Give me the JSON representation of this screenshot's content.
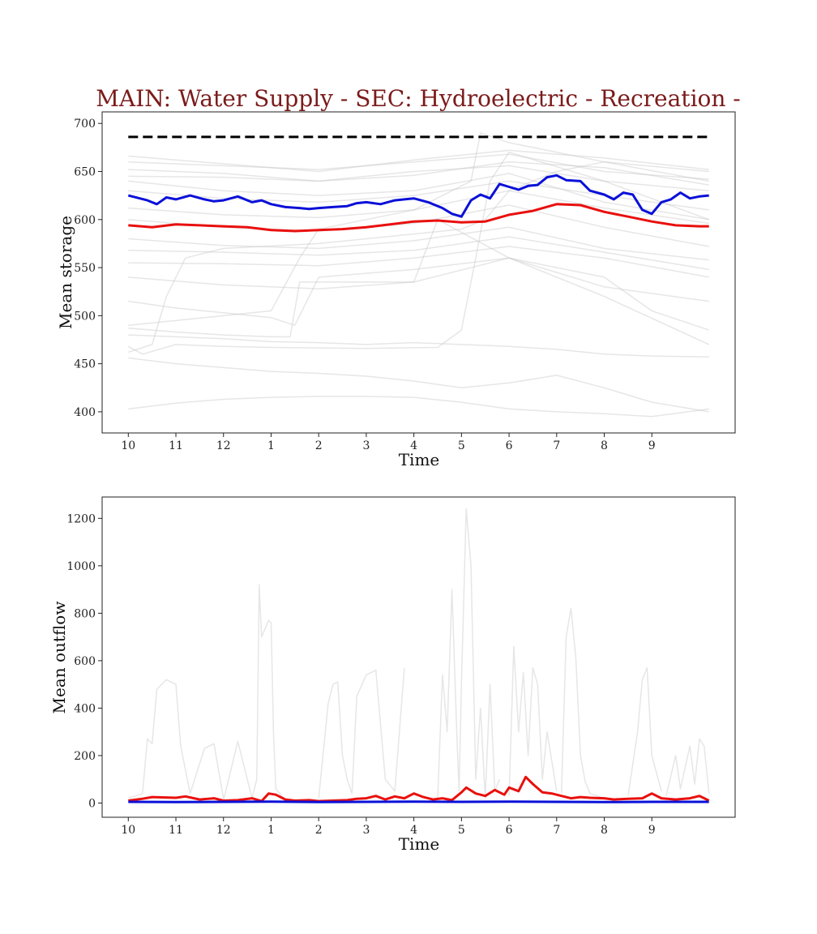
{
  "figure": {
    "title": "MAIN: Water Supply - SEC: Hydroelectric - Recreation -",
    "title_color": "#7b1b1b"
  },
  "chart_data": [
    {
      "type": "line",
      "xlabel": "Time",
      "ylabel": "Mean storage",
      "x_tick_labels": [
        "10",
        "11",
        "12",
        "1",
        "2",
        "3",
        "4",
        "5",
        "6",
        "7",
        "8",
        "9"
      ],
      "x_tick_positions": [
        0,
        1,
        2,
        3,
        4,
        5,
        6,
        7,
        8,
        9,
        10,
        11
      ],
      "xlim": [
        -0.55,
        12.75
      ],
      "y_ticks": [
        400,
        450,
        500,
        550,
        600,
        650,
        700
      ],
      "ylim": [
        378,
        712
      ],
      "colors": {
        "mean": "#0a10d8",
        "reference": "#e8100e",
        "threshold": "#000000",
        "background": "#c8c8c8"
      },
      "threshold": {
        "value": 686,
        "style": "dashed"
      },
      "series": [
        {
          "role": "mean",
          "x": [
            0,
            0.4,
            0.6,
            0.8,
            1.0,
            1.3,
            1.6,
            1.8,
            2.0,
            2.3,
            2.6,
            2.8,
            3.0,
            3.3,
            3.6,
            3.8,
            4.0,
            4.3,
            4.6,
            4.8,
            5.0,
            5.3,
            5.6,
            5.8,
            6.0,
            6.3,
            6.6,
            6.8,
            7.0,
            7.2,
            7.4,
            7.6,
            7.8,
            8.0,
            8.2,
            8.4,
            8.6,
            8.8,
            9.0,
            9.2,
            9.5,
            9.7,
            10.0,
            10.2,
            10.4,
            10.6,
            10.8,
            11.0,
            11.2,
            11.4,
            11.6,
            11.8,
            12.0,
            12.2
          ],
          "values": [
            625,
            620,
            616,
            623,
            621,
            625,
            621,
            619,
            620,
            624,
            618,
            620,
            616,
            613,
            612,
            611,
            612,
            613,
            614,
            617,
            618,
            616,
            620,
            621,
            622,
            618,
            612,
            606,
            603,
            620,
            626,
            622,
            637,
            634,
            631,
            635,
            636,
            644,
            646,
            641,
            640,
            630,
            626,
            621,
            628,
            626,
            610,
            606,
            618,
            621,
            628,
            622,
            624,
            625
          ]
        },
        {
          "role": "reference",
          "x": [
            0,
            0.5,
            1.0,
            1.5,
            2.0,
            2.5,
            3.0,
            3.5,
            4.0,
            4.5,
            5.0,
            5.5,
            6.0,
            6.5,
            7.0,
            7.5,
            8.0,
            8.5,
            9.0,
            9.5,
            10.0,
            10.5,
            11.0,
            11.5,
            12.0,
            12.2
          ],
          "values": [
            594,
            592,
            595,
            594,
            593,
            592,
            589,
            588,
            589,
            590,
            592,
            595,
            598,
            599,
            597,
            598,
            605,
            609,
            616,
            615,
            608,
            603,
            598,
            594,
            593,
            593
          ]
        },
        {
          "role": "background",
          "x": [
            0,
            2,
            4,
            6,
            8,
            10,
            12.2
          ],
          "values": [
            660,
            656,
            652,
            660,
            668,
            650,
            642
          ]
        },
        {
          "role": "background",
          "x": [
            0,
            2,
            4,
            6,
            8,
            10,
            12.2
          ],
          "values": [
            652,
            648,
            640,
            646,
            660,
            654,
            636
          ]
        },
        {
          "role": "background",
          "x": [
            0,
            2,
            4,
            6,
            8,
            10,
            12.2
          ],
          "values": [
            666,
            658,
            650,
            662,
            672,
            664,
            652
          ]
        },
        {
          "role": "background",
          "x": [
            0,
            2,
            4,
            6,
            8,
            10,
            12.2
          ],
          "values": [
            645,
            644,
            640,
            650,
            656,
            640,
            630
          ]
        },
        {
          "role": "background",
          "x": [
            0,
            2,
            4,
            6,
            8,
            10,
            12.2
          ],
          "values": [
            640,
            630,
            625,
            630,
            648,
            618,
            600
          ]
        },
        {
          "role": "background",
          "x": [
            0,
            2,
            4,
            6,
            8,
            10,
            12.2
          ],
          "values": [
            630,
            622,
            618,
            625,
            640,
            625,
            610
          ]
        },
        {
          "role": "background",
          "x": [
            0,
            2,
            4,
            6,
            8,
            10,
            12.2
          ],
          "values": [
            612,
            605,
            602,
            610,
            630,
            612,
            596
          ]
        },
        {
          "role": "background",
          "x": [
            0,
            2,
            4,
            6,
            8,
            10,
            12.2
          ],
          "values": [
            600,
            592,
            588,
            596,
            615,
            592,
            572
          ]
        },
        {
          "role": "background",
          "x": [
            0,
            2,
            4,
            6,
            8,
            10,
            12.2
          ],
          "values": [
            580,
            573,
            570,
            578,
            592,
            570,
            558
          ]
        },
        {
          "role": "background",
          "x": [
            0,
            2,
            4,
            6,
            8,
            10,
            12.2
          ],
          "values": [
            568,
            566,
            563,
            568,
            582,
            566,
            548
          ]
        },
        {
          "role": "background",
          "x": [
            0,
            2,
            4,
            6,
            8,
            10,
            12.2
          ],
          "values": [
            555,
            554,
            552,
            560,
            572,
            560,
            540
          ]
        },
        {
          "role": "background",
          "x": [
            0,
            2,
            4,
            6,
            8,
            10,
            12.2
          ],
          "values": [
            540,
            532,
            528,
            535,
            560,
            530,
            515
          ]
        },
        {
          "role": "background",
          "x": [
            0,
            1,
            2,
            3,
            3.5,
            4,
            6,
            8,
            10,
            11,
            12.2
          ],
          "values": [
            515,
            508,
            503,
            498,
            490,
            540,
            548,
            560,
            540,
            505,
            485
          ]
        },
        {
          "role": "background",
          "x": [
            0,
            1,
            2,
            3,
            3.4,
            3.6,
            6,
            6.5,
            8,
            10,
            12.2
          ],
          "values": [
            487,
            483,
            480,
            478,
            478,
            535,
            535,
            600,
            560,
            520,
            470
          ]
        },
        {
          "role": "background",
          "x": [
            0,
            1,
            2,
            3,
            4,
            5,
            6,
            7,
            8,
            9,
            10,
            11,
            12.2
          ],
          "values": [
            480,
            478,
            476,
            473,
            472,
            470,
            472,
            470,
            468,
            465,
            460,
            458,
            457
          ]
        },
        {
          "role": "background",
          "x": [
            0,
            1,
            2,
            3,
            4,
            5,
            6,
            7,
            8,
            9,
            10,
            11,
            12.2
          ],
          "values": [
            456,
            450,
            446,
            442,
            440,
            437,
            432,
            425,
            430,
            438,
            425,
            410,
            400
          ]
        },
        {
          "role": "background",
          "x": [
            0,
            1,
            2,
            3,
            4,
            5,
            6,
            7,
            8,
            9,
            10,
            11,
            12.2
          ],
          "values": [
            403,
            409,
            413,
            415,
            416,
            416,
            415,
            410,
            403,
            400,
            398,
            395,
            403
          ]
        },
        {
          "role": "background",
          "x": [
            0,
            0.3,
            1,
            2,
            3,
            5,
            6.5,
            7,
            7.3,
            7.6,
            8,
            10,
            12.2
          ],
          "values": [
            468,
            460,
            470,
            468,
            467,
            466,
            467,
            485,
            560,
            640,
            670,
            640,
            600
          ]
        },
        {
          "role": "background",
          "x": [
            0,
            0.5,
            0.8,
            1.2,
            2,
            4,
            5,
            6,
            7,
            7.5,
            8,
            9,
            10,
            12.2
          ],
          "values": [
            462,
            470,
            520,
            560,
            570,
            575,
            580,
            585,
            590,
            600,
            630,
            650,
            660,
            650
          ]
        },
        {
          "role": "background",
          "x": [
            0,
            2,
            3,
            3.6,
            4,
            5,
            6,
            7.2,
            7.4,
            8,
            10,
            12.2
          ],
          "values": [
            490,
            500,
            505,
            560,
            590,
            600,
            610,
            640,
            690,
            680,
            660,
            640
          ]
        }
      ]
    },
    {
      "type": "line",
      "xlabel": "Time",
      "ylabel": "Mean outflow",
      "x_tick_labels": [
        "10",
        "11",
        "12",
        "1",
        "2",
        "3",
        "4",
        "5",
        "6",
        "7",
        "8",
        "9"
      ],
      "x_tick_positions": [
        0,
        1,
        2,
        3,
        4,
        5,
        6,
        7,
        8,
        9,
        10,
        11
      ],
      "xlim": [
        -0.55,
        12.75
      ],
      "y_ticks": [
        0,
        200,
        400,
        600,
        800,
        1000,
        1200
      ],
      "ylim": [
        -60,
        1290
      ],
      "colors": {
        "mean": "#0a10d8",
        "reference": "#e8100e",
        "background": "#c8c8c8"
      },
      "series": [
        {
          "role": "reference",
          "x": [
            0,
            0.3,
            0.5,
            1.0,
            1.2,
            1.5,
            1.8,
            2.0,
            2.3,
            2.6,
            2.8,
            2.95,
            3.1,
            3.3,
            3.5,
            3.8,
            4.0,
            4.3,
            4.6,
            4.8,
            5.0,
            5.2,
            5.4,
            5.6,
            5.8,
            6.0,
            6.2,
            6.4,
            6.6,
            6.8,
            7.0,
            7.1,
            7.3,
            7.5,
            7.7,
            7.9,
            8.0,
            8.2,
            8.35,
            8.5,
            8.7,
            8.9,
            9.1,
            9.3,
            9.5,
            9.7,
            10.0,
            10.2,
            10.5,
            10.8,
            11.0,
            11.2,
            11.5,
            11.8,
            12.0,
            12.2
          ],
          "values": [
            10,
            18,
            25,
            22,
            28,
            15,
            20,
            10,
            12,
            20,
            8,
            40,
            35,
            15,
            10,
            12,
            8,
            10,
            12,
            18,
            20,
            30,
            15,
            28,
            20,
            40,
            25,
            15,
            20,
            12,
            45,
            65,
            40,
            30,
            55,
            35,
            65,
            50,
            110,
            80,
            45,
            40,
            30,
            20,
            25,
            22,
            20,
            15,
            18,
            20,
            40,
            20,
            15,
            20,
            30,
            10
          ]
        },
        {
          "role": "mean",
          "x": [
            0,
            1,
            2,
            3,
            4,
            5,
            6,
            7,
            8,
            9,
            10,
            11,
            12.2
          ],
          "values": [
            5,
            4,
            5,
            6,
            4,
            5,
            6,
            5,
            6,
            5,
            4,
            5,
            5
          ]
        },
        {
          "role": "background",
          "x": [
            0,
            0.3,
            0.4,
            0.5,
            0.6,
            0.8,
            1.0,
            1.1,
            1.3,
            1.6,
            1.8,
            2.0
          ],
          "values": [
            20,
            40,
            270,
            250,
            480,
            520,
            500,
            240,
            40,
            230,
            250,
            20
          ]
        },
        {
          "role": "background",
          "x": [
            2,
            2.3,
            2.6,
            2.7,
            2.75,
            2.8,
            2.95,
            3.0,
            3.05,
            3.1,
            3.3
          ],
          "values": [
            10,
            260,
            20,
            100,
            920,
            700,
            770,
            760,
            300,
            60,
            10
          ]
        },
        {
          "role": "background",
          "x": [
            4,
            4.2,
            4.3,
            4.4,
            4.5,
            4.6,
            4.7,
            4.8,
            5.0,
            5.2,
            5.4,
            5.6,
            5.8
          ],
          "values": [
            20,
            420,
            500,
            510,
            200,
            100,
            40,
            450,
            540,
            560,
            100,
            50,
            570
          ]
        },
        {
          "role": "background",
          "x": [
            6.5,
            6.6,
            6.7,
            6.8,
            6.9,
            6.95,
            7.0,
            7.1,
            7.2,
            7.3,
            7.4,
            7.5,
            7.6,
            7.7,
            7.8
          ],
          "values": [
            20,
            540,
            300,
            900,
            300,
            50,
            500,
            1240,
            1000,
            100,
            400,
            20,
            500,
            50,
            100
          ]
        },
        {
          "role": "background",
          "x": [
            8,
            8.1,
            8.2,
            8.3,
            8.4,
            8.5,
            8.6,
            8.7,
            8.8,
            9.0
          ],
          "values": [
            30,
            660,
            300,
            550,
            200,
            570,
            500,
            100,
            300,
            50
          ]
        },
        {
          "role": "background",
          "x": [
            9.1,
            9.2,
            9.3,
            9.4,
            9.5,
            9.6,
            9.7,
            10.0
          ],
          "values": [
            40,
            700,
            820,
            620,
            200,
            90,
            40,
            20
          ]
        },
        {
          "role": "background",
          "x": [
            10.5,
            10.7,
            10.8,
            10.9,
            11.0,
            11.2
          ],
          "values": [
            30,
            300,
            520,
            570,
            200,
            50
          ]
        },
        {
          "role": "background",
          "x": [
            11.3,
            11.5,
            11.6,
            11.8,
            11.9,
            12.0,
            12.1,
            12.2
          ],
          "values": [
            30,
            200,
            60,
            240,
            80,
            270,
            240,
            40
          ]
        }
      ]
    }
  ]
}
